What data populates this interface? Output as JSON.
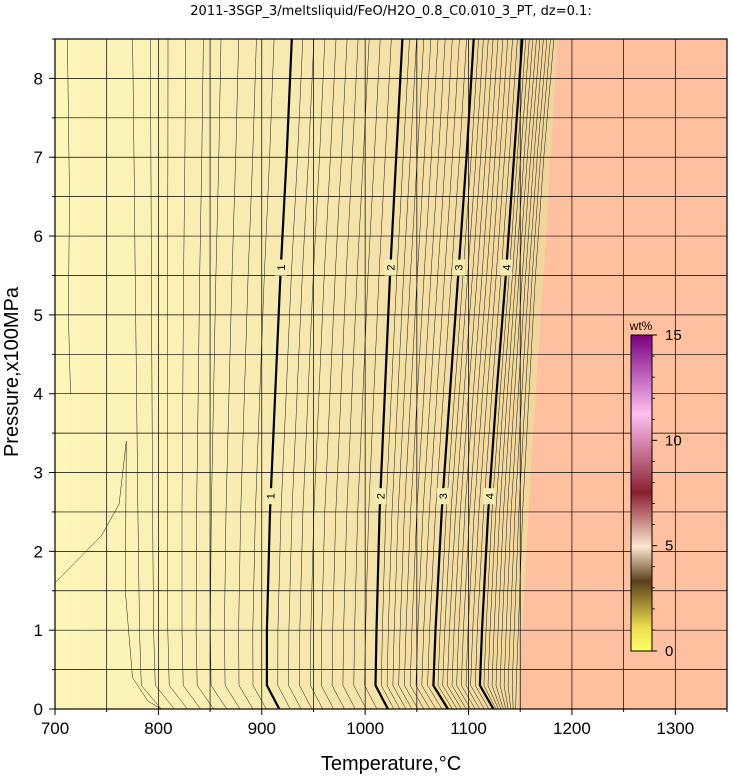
{
  "chart_data": {
    "type": "heatmap",
    "title": "2011-3SGP_3/meltsliquid/FeO/H2O_0.8_C0.010_3_PT, dz=0.1:",
    "xlabel": "Temperature,°C",
    "ylabel": "Pressure,x100MPa",
    "xlim": [
      700,
      1350
    ],
    "ylim": [
      0,
      8.5
    ],
    "x_ticks": [
      "700",
      "800",
      "900",
      "1000",
      "1100",
      "1200",
      "1300"
    ],
    "y_ticks": [
      "0",
      "1",
      "2",
      "3",
      "4",
      "5",
      "6",
      "7",
      "8"
    ],
    "grid": true,
    "colorbar": {
      "unit": "wt%",
      "range": [
        0,
        15
      ],
      "ticks": [
        "0",
        "5",
        "10",
        "15"
      ],
      "placement": "right-inside"
    },
    "contour_interval": 0.1,
    "major_contours": [
      {
        "level": "1",
        "points": [
          [
            917,
            0
          ],
          [
            905,
            0.3
          ],
          [
            905,
            1
          ],
          [
            908,
            2.5
          ],
          [
            913,
            4
          ],
          [
            918,
            5.5
          ],
          [
            924,
            7
          ],
          [
            929,
            8.5
          ]
        ]
      },
      {
        "level": "2",
        "points": [
          [
            1022,
            0
          ],
          [
            1010,
            0.3
          ],
          [
            1011,
            1
          ],
          [
            1014,
            2.5
          ],
          [
            1019,
            4
          ],
          [
            1024,
            5.5
          ],
          [
            1030,
            7
          ],
          [
            1036,
            8.5
          ]
        ]
      },
      {
        "level": "3",
        "points": [
          [
            1080,
            0
          ],
          [
            1066,
            0.3
          ],
          [
            1068,
            1
          ],
          [
            1074,
            2.5
          ],
          [
            1082,
            4
          ],
          [
            1090,
            5.5
          ],
          [
            1098,
            7
          ],
          [
            1105,
            8.5
          ]
        ]
      },
      {
        "level": "4",
        "points": [
          [
            1124,
            0
          ],
          [
            1111,
            0.3
          ],
          [
            1113,
            1
          ],
          [
            1119,
            2.5
          ],
          [
            1127,
            4
          ],
          [
            1136,
            5.5
          ],
          [
            1144,
            7
          ],
          [
            1152,
            8.5
          ]
        ]
      }
    ],
    "liquidus_boundary": [
      [
        1148,
        0
      ],
      [
        1160,
        3
      ],
      [
        1175,
        6
      ],
      [
        1186,
        8.5
      ]
    ],
    "colors": {
      "melt_region": "#fdf5b4",
      "melt_region_warm": "#f5e7a8",
      "liquid_region": "#ffc0a0",
      "grid": "#000000",
      "colorbar_stops": [
        "#ffff66",
        "#2a2010",
        "#7a2030",
        "#ffb0ff",
        "#800080"
      ]
    }
  }
}
